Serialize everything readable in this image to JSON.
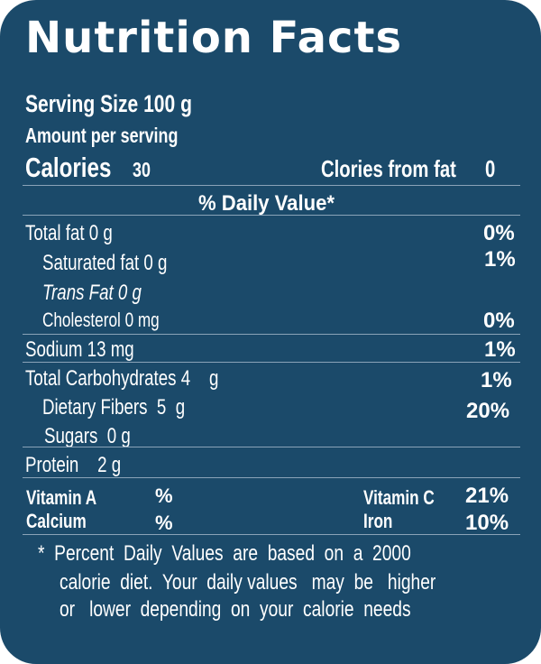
{
  "title": "Nutrition Facts",
  "serving_size": "Serving Size 100 g",
  "amount_per_serving": "Amount per serving",
  "calories": {
    "label": "Calories",
    "value": "30",
    "from_fat_label": "Clories from fat",
    "from_fat_value": "0"
  },
  "daily_value_header": "% Daily Value*",
  "nutrients": [
    {
      "label": "Total fat  0  g",
      "dv": "0%"
    },
    {
      "label": "Saturated fat 0 g",
      "dv": "1%"
    },
    {
      "label": "Trans Fat  0 g",
      "dv": ""
    },
    {
      "label": "Cholesterol  0 mg",
      "dv": "0%"
    },
    {
      "label": "Sodium 13 mg",
      "dv": "1%"
    },
    {
      "label": "Total Carbohydrates 4    g",
      "dv": "1%"
    },
    {
      "label": "Dietary Fibers  5  g",
      "dv": "20%"
    },
    {
      "label": "Sugars  0 g",
      "dv": ""
    },
    {
      "label": "Protein    2 g",
      "dv": ""
    }
  ],
  "vitamins": [
    {
      "label": "Vitamin A",
      "value": "%"
    },
    {
      "label": "Calcium",
      "value": "%"
    },
    {
      "label": "Vitamin C",
      "value": "21%"
    },
    {
      "label": "Iron",
      "value": "10%"
    }
  ],
  "footnote": [
    "*  Percent  Daily  Values  are  based  on  a  2000",
    "calorie  diet.  Your  daily values   may  be   higher",
    "or   lower  depending  on  your  calorie  needs"
  ]
}
